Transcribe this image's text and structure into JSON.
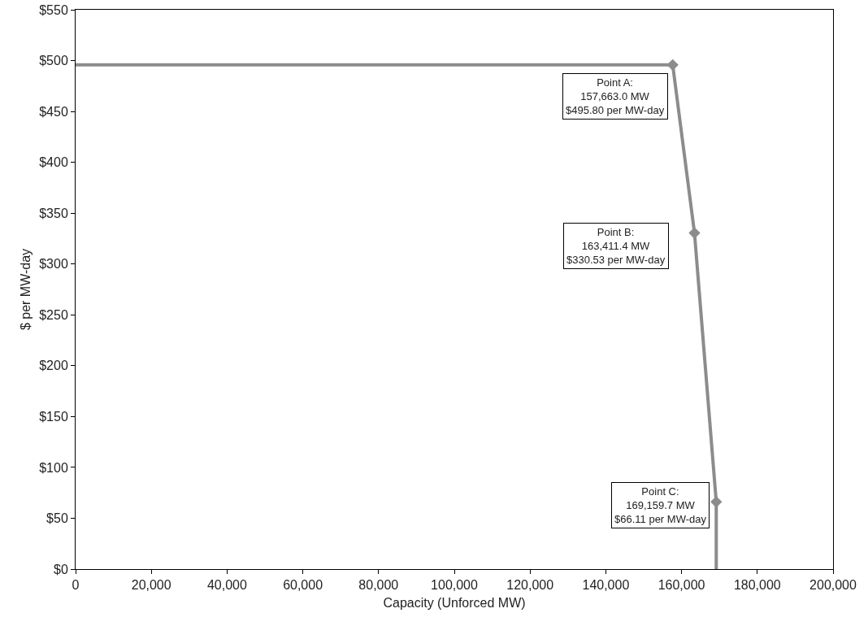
{
  "chart_data": {
    "type": "line",
    "xlabel": "Capacity (Unforced MW)",
    "ylabel": "$ per MW-day",
    "series": [
      {
        "color": "#8c8c8c",
        "x": [
          0,
          157663.0,
          163411.4,
          169159.7,
          169159.7
        ],
        "values": [
          495.8,
          495.8,
          330.53,
          66.11,
          0
        ],
        "marker": "none"
      },
      {
        "type": "scatter",
        "color": "#8c8c8c",
        "x": [
          157663.0,
          163411.4,
          169159.7
        ],
        "values": [
          495.8,
          330.53,
          66.11
        ],
        "marker": "diamond"
      }
    ],
    "xlim": [
      0,
      200000
    ],
    "xticks": [
      0,
      {
        "value": 20000,
        "label": "20,000"
      },
      {
        "value": 40000,
        "label": "40,000"
      },
      {
        "value": 60000,
        "label": "60,000"
      },
      {
        "value": 80000,
        "label": "80,000"
      },
      {
        "value": 100000,
        "label": "100,000"
      },
      {
        "value": 120000,
        "label": "120,000"
      },
      {
        "value": 140000,
        "label": "140,000"
      },
      {
        "value": 160000,
        "label": "160,000"
      },
      {
        "value": 180000,
        "label": "180,000"
      },
      {
        "value": 200000,
        "label": "200,000"
      }
    ],
    "ylim": [
      0,
      550
    ],
    "yticks": [
      {
        "value": 0,
        "label": "$0"
      },
      {
        "value": 50,
        "label": "$50"
      },
      {
        "value": 100,
        "label": "$100"
      },
      {
        "value": 150,
        "label": "$150"
      },
      {
        "value": 200,
        "label": "$200"
      },
      {
        "value": 250,
        "label": "$250"
      },
      {
        "value": 300,
        "label": "$300"
      },
      {
        "value": 350,
        "label": "$350"
      },
      {
        "value": 400,
        "label": "$400"
      },
      {
        "value": 450,
        "label": "$450"
      },
      {
        "value": 500,
        "label": "$500"
      },
      {
        "value": 550,
        "label": "$550"
      }
    ],
    "annotations": [
      {
        "text": "Point A:\n157,663.0 MW\n$495.80 per MW-day",
        "x": 157663.0,
        "y": 495.8
      },
      {
        "text": "Point B:\n163,411.4 MW\n$330.53 per MW-day",
        "x": 163411.4,
        "y": 330.53
      },
      {
        "text": "Point C:\n169,159.7 MW\n$66.11 per MW-day",
        "x": 169159.7,
        "y": 66.11
      }
    ]
  }
}
